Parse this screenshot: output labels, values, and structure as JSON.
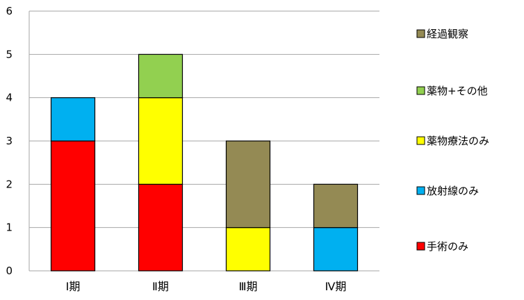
{
  "chart_data": {
    "type": "bar",
    "stacked": true,
    "title": "",
    "xlabel": "",
    "ylabel": "",
    "categories": [
      "Ⅰ期",
      "Ⅱ期",
      "Ⅲ期",
      "Ⅳ期"
    ],
    "ylim": [
      0,
      6
    ],
    "yticks": [
      0,
      1,
      2,
      3,
      4,
      5,
      6
    ],
    "grid": true,
    "legend_position": "right",
    "series": [
      {
        "name": "手術のみ",
        "color": "#ff0000",
        "values": [
          3,
          2,
          0,
          0
        ]
      },
      {
        "name": "放射線のみ",
        "color": "#00b0f0",
        "values": [
          1,
          0,
          0,
          1
        ]
      },
      {
        "name": "薬物療法のみ",
        "color": "#ffff00",
        "values": [
          0,
          2,
          1,
          0
        ]
      },
      {
        "name": "薬物+その他",
        "color": "#92d050",
        "values": [
          0,
          1,
          0,
          0
        ]
      },
      {
        "name": "経過観察",
        "color": "#948a54",
        "values": [
          0,
          0,
          2,
          1
        ]
      }
    ]
  }
}
